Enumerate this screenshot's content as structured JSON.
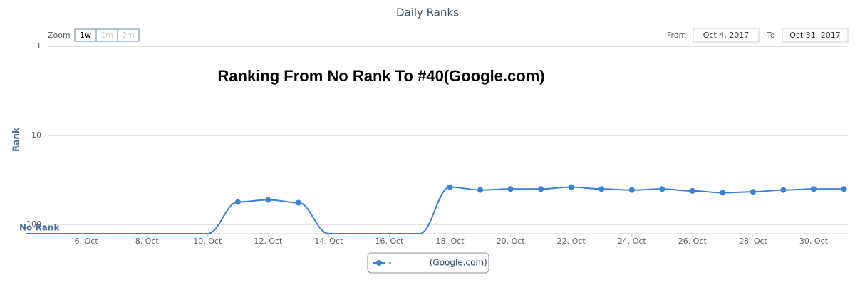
{
  "chart_data": {
    "type": "line",
    "title": "Daily Ranks",
    "annotation": "Ranking From No Rank To #40(Google.com)",
    "y_label": "Rank",
    "range_selector": {
      "zoom_label": "Zoom",
      "buttons": [
        "1w",
        "1m",
        "2m"
      ],
      "from_label": "From",
      "from": "Oct 4, 2017",
      "to_label": "To",
      "to": "Oct 31, 2017"
    },
    "x": [
      4,
      5,
      6,
      7,
      8,
      9,
      10,
      11,
      12,
      13,
      14,
      15,
      16,
      17,
      18,
      19,
      20,
      21,
      22,
      23,
      24,
      25,
      26,
      27,
      28,
      29,
      30,
      31
    ],
    "series": [
      {
        "name": "-              (Google.com)",
        "color": "#3a80d6",
        "values": [
          127,
          127,
          127,
          127,
          127,
          127,
          127,
          56,
          53,
          57,
          127,
          127,
          127,
          127,
          38,
          41,
          40,
          40,
          38,
          40,
          41,
          40,
          42,
          44,
          43,
          41,
          40,
          40
        ]
      }
    ],
    "xlim": [
      4.75,
      31.13
    ],
    "xticks": [
      {
        "value": 6,
        "label": "6. Oct"
      },
      {
        "value": 8,
        "label": "8. Oct"
      },
      {
        "value": 10,
        "label": "10. Oct"
      },
      {
        "value": 12,
        "label": "12. Oct"
      },
      {
        "value": 14,
        "label": "14. Oct"
      },
      {
        "value": 16,
        "label": "16. Oct"
      },
      {
        "value": 18,
        "label": "18. Oct"
      },
      {
        "value": 20,
        "label": "20. Oct"
      },
      {
        "value": 22,
        "label": "22. Oct"
      },
      {
        "value": 24,
        "label": "24. Oct"
      },
      {
        "value": 26,
        "label": "26. Oct"
      },
      {
        "value": 28,
        "label": "28. Oct"
      },
      {
        "value": 30,
        "label": "30. Oct"
      }
    ],
    "ylim": [
      1,
      127
    ],
    "yticks": [
      1,
      10,
      100,
      {
        "value": 127,
        "label": "No Rank"
      }
    ],
    "y_log": true,
    "y_reversed": true,
    "grid": true
  }
}
